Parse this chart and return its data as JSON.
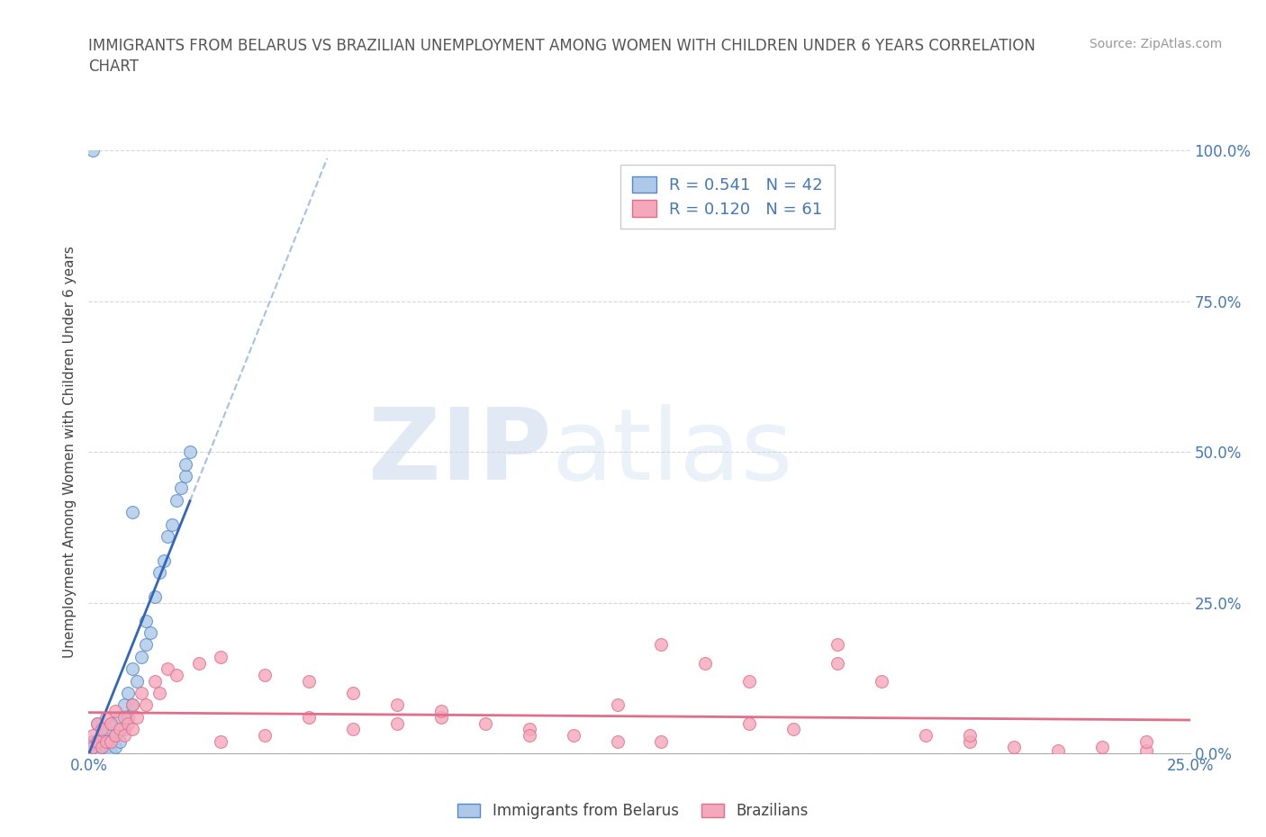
{
  "title_line1": "IMMIGRANTS FROM BELARUS VS BRAZILIAN UNEMPLOYMENT AMONG WOMEN WITH CHILDREN UNDER 6 YEARS CORRELATION",
  "title_line2": "CHART",
  "source": "Source: ZipAtlas.com",
  "ylabel": "Unemployment Among Women with Children Under 6 years",
  "xlim": [
    0.0,
    0.25
  ],
  "ylim": [
    0.0,
    1.0
  ],
  "xtick_positions": [
    0.0,
    0.25
  ],
  "xtick_labels": [
    "0.0%",
    "25.0%"
  ],
  "ytick_positions": [
    0.0,
    0.25,
    0.5,
    0.75,
    1.0
  ],
  "ytick_labels": [
    "0.0%",
    "25.0%",
    "50.0%",
    "75.0%",
    "100.0%"
  ],
  "belarus_color": "#adc8e8",
  "brazil_color": "#f5a8bc",
  "belarus_edge": "#5588cc",
  "brazil_edge": "#e0708a",
  "trendline_belarus_color": "#3366bb",
  "trendline_brazil_color": "#e0708a",
  "dashed_color": "#99bbdd",
  "R_belarus": 0.541,
  "N_belarus": 42,
  "R_brazil": 0.12,
  "N_brazil": 61,
  "watermark_zip": "ZIP",
  "watermark_atlas": "atlas",
  "legend_label_belarus": "Immigrants from Belarus",
  "legend_label_brazil": "Brazilians",
  "belarus_x": [
    0.001,
    0.001,
    0.001,
    0.002,
    0.002,
    0.002,
    0.003,
    0.003,
    0.003,
    0.004,
    0.004,
    0.004,
    0.005,
    0.005,
    0.005,
    0.006,
    0.006,
    0.007,
    0.007,
    0.008,
    0.008,
    0.009,
    0.009,
    0.01,
    0.01,
    0.011,
    0.012,
    0.013,
    0.013,
    0.014,
    0.015,
    0.016,
    0.017,
    0.018,
    0.019,
    0.02,
    0.021,
    0.022,
    0.022,
    0.023,
    0.01,
    0.001
  ],
  "belarus_y": [
    0.0,
    0.01,
    0.02,
    0.0,
    0.02,
    0.05,
    0.0,
    0.01,
    0.03,
    0.01,
    0.02,
    0.04,
    0.0,
    0.02,
    0.05,
    0.01,
    0.03,
    0.02,
    0.06,
    0.04,
    0.08,
    0.06,
    0.1,
    0.08,
    0.14,
    0.12,
    0.16,
    0.18,
    0.22,
    0.2,
    0.26,
    0.3,
    0.32,
    0.36,
    0.38,
    0.42,
    0.44,
    0.46,
    0.48,
    0.5,
    0.4,
    1.0
  ],
  "brazil_x": [
    0.001,
    0.001,
    0.002,
    0.002,
    0.003,
    0.003,
    0.004,
    0.004,
    0.005,
    0.005,
    0.006,
    0.006,
    0.007,
    0.008,
    0.008,
    0.009,
    0.01,
    0.01,
    0.011,
    0.012,
    0.013,
    0.015,
    0.016,
    0.018,
    0.02,
    0.025,
    0.03,
    0.04,
    0.05,
    0.06,
    0.07,
    0.08,
    0.09,
    0.1,
    0.11,
    0.12,
    0.13,
    0.14,
    0.15,
    0.16,
    0.17,
    0.18,
    0.19,
    0.2,
    0.21,
    0.22,
    0.23,
    0.24,
    0.12,
    0.15,
    0.08,
    0.06,
    0.04,
    0.03,
    0.05,
    0.07,
    0.1,
    0.13,
    0.17,
    0.2,
    0.24
  ],
  "brazil_y": [
    0.01,
    0.03,
    0.02,
    0.05,
    0.01,
    0.04,
    0.02,
    0.06,
    0.02,
    0.05,
    0.03,
    0.07,
    0.04,
    0.03,
    0.06,
    0.05,
    0.04,
    0.08,
    0.06,
    0.1,
    0.08,
    0.12,
    0.1,
    0.14,
    0.13,
    0.15,
    0.16,
    0.13,
    0.12,
    0.1,
    0.08,
    0.06,
    0.05,
    0.04,
    0.03,
    0.02,
    0.18,
    0.15,
    0.05,
    0.04,
    0.18,
    0.12,
    0.03,
    0.02,
    0.01,
    0.005,
    0.01,
    0.005,
    0.08,
    0.12,
    0.07,
    0.04,
    0.03,
    0.02,
    0.06,
    0.05,
    0.03,
    0.02,
    0.15,
    0.03,
    0.02
  ]
}
